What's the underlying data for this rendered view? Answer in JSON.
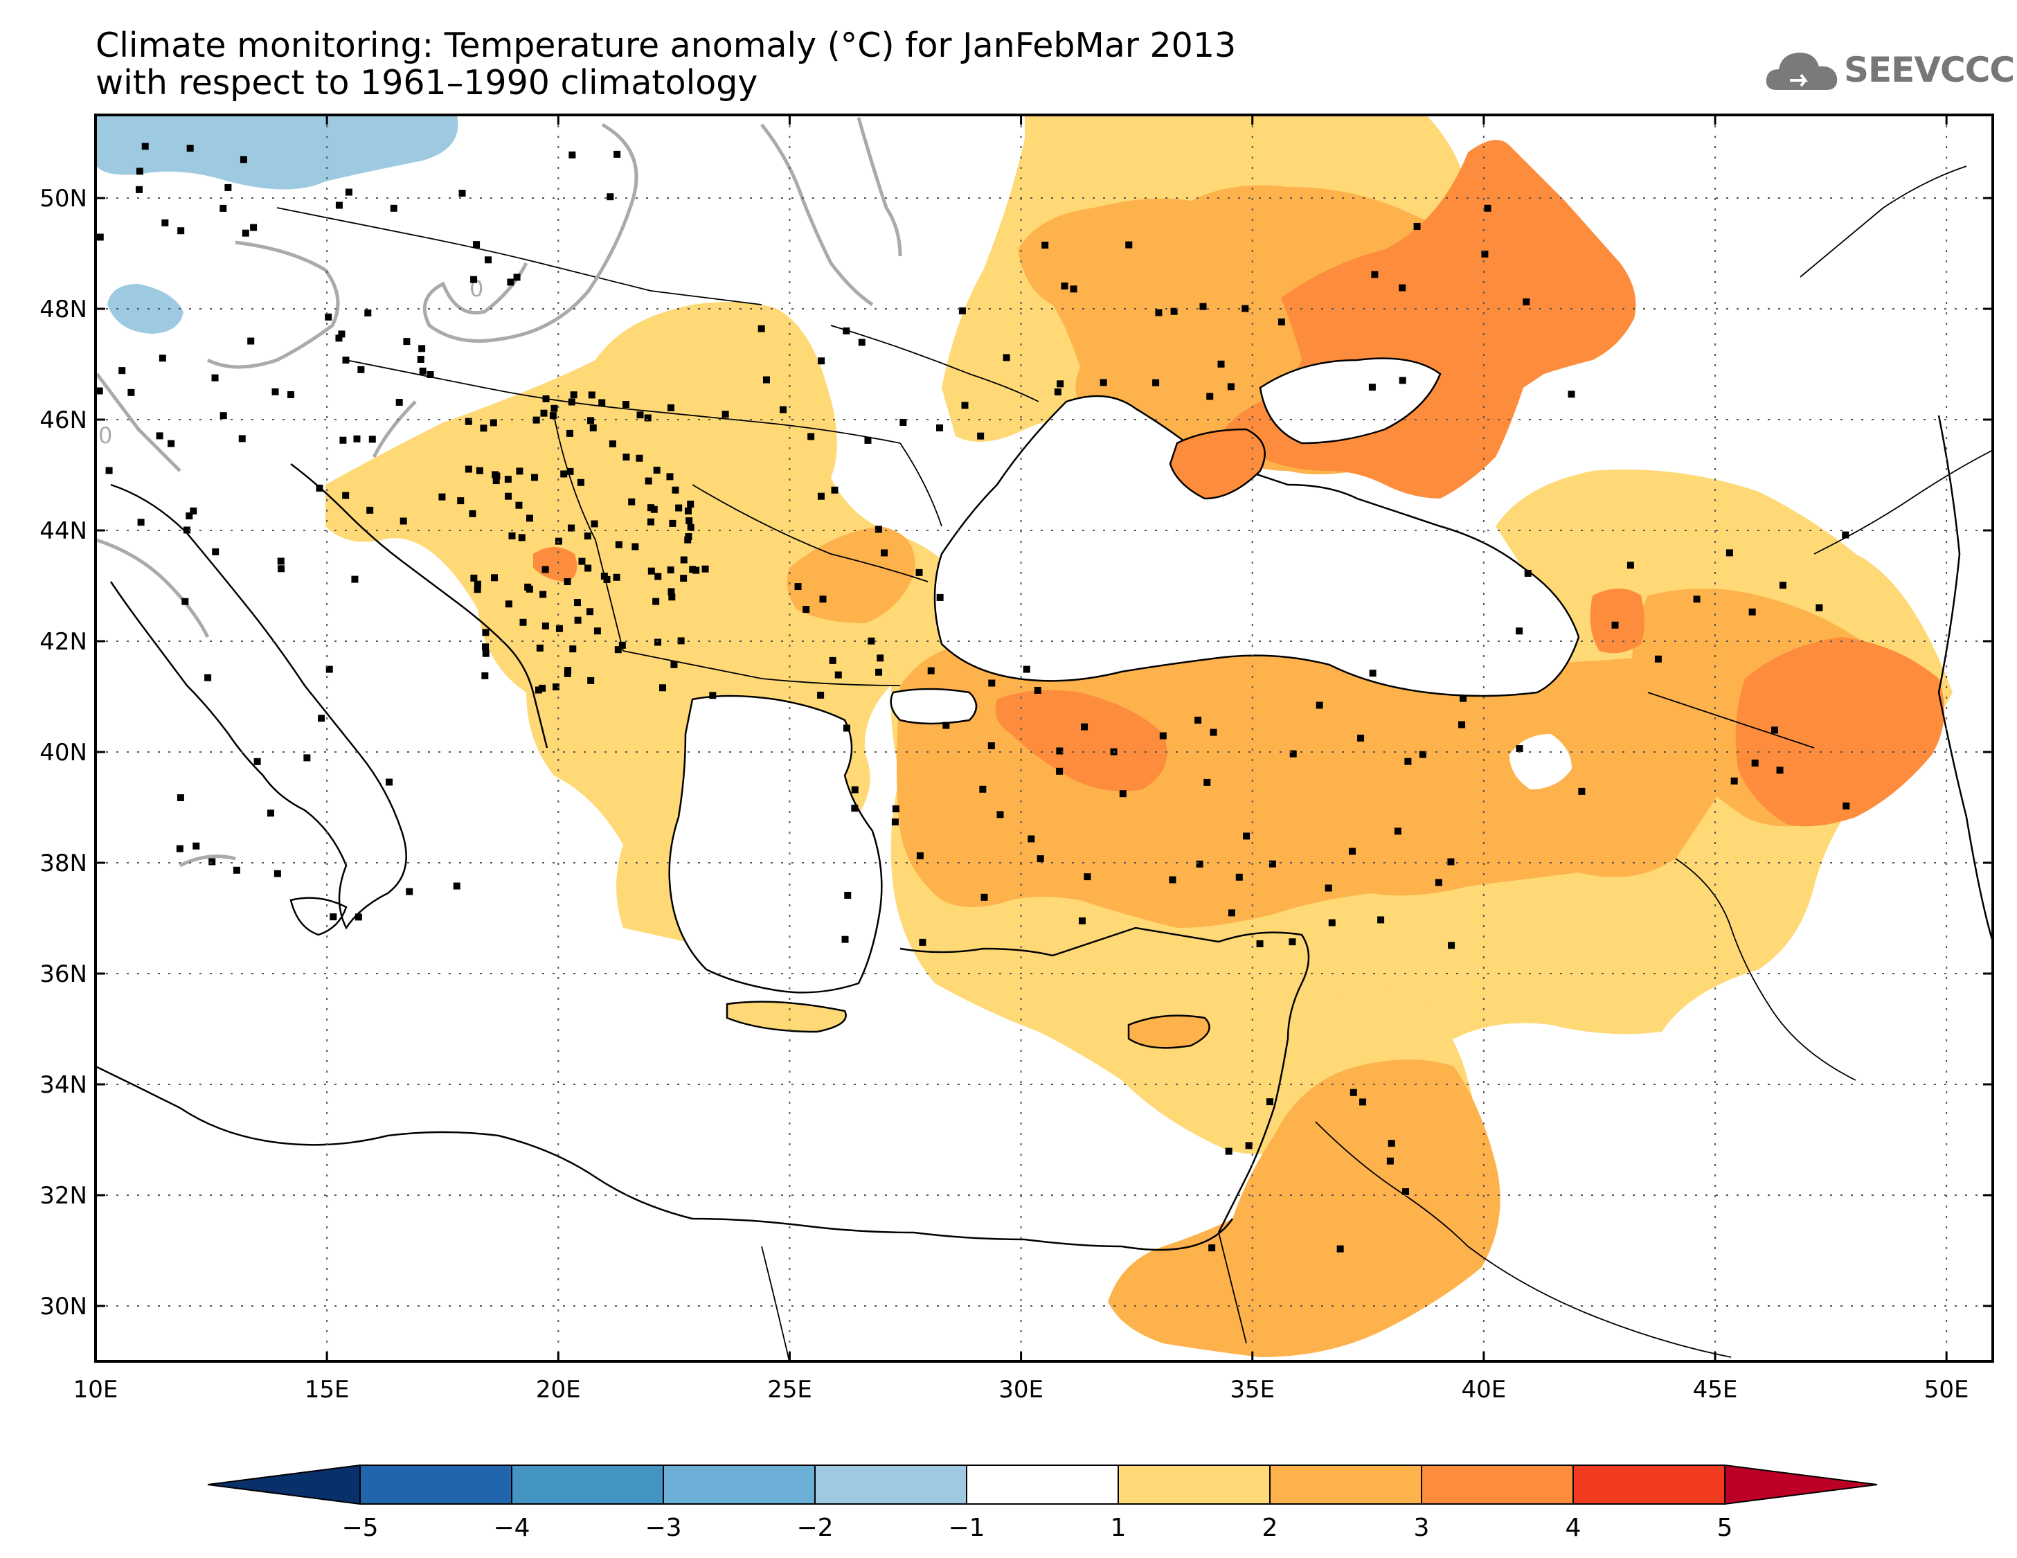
{
  "title": {
    "line1": "Climate monitoring: Temperature anomaly (°C) for JanFebMar 2013",
    "line2": "with respect to 1961–1990 climatology"
  },
  "logo": {
    "text": "SEEVCCC",
    "icon": "cloud-icon",
    "color": "#777777"
  },
  "map": {
    "lon_range": [
      10,
      51
    ],
    "lat_range": [
      29,
      51.5
    ],
    "lon_ticks": [
      10,
      15,
      20,
      25,
      30,
      35,
      40,
      45,
      50
    ],
    "lat_ticks": [
      30,
      32,
      34,
      36,
      38,
      40,
      42,
      44,
      46,
      48,
      50
    ],
    "lon_tick_labels": [
      "10E",
      "15E",
      "20E",
      "25E",
      "30E",
      "35E",
      "40E",
      "45E",
      "50E"
    ],
    "lat_tick_labels": [
      "30N",
      "32N",
      "34N",
      "36N",
      "38N",
      "40N",
      "42N",
      "44N",
      "46N",
      "48N",
      "50N"
    ],
    "contour_label": "0",
    "grid": "dotted"
  },
  "colorbar": {
    "labels": [
      "-5",
      "-4",
      "-3",
      "-2",
      "-1",
      "1",
      "2",
      "3",
      "4",
      "5"
    ],
    "colors": [
      "#08306b",
      "#2166ac",
      "#4393c3",
      "#6baed6",
      "#9ecae1",
      "#ffffff",
      "#fed976",
      "#feb24c",
      "#fd8d3c",
      "#f03b20",
      "#bd0026"
    ]
  }
}
